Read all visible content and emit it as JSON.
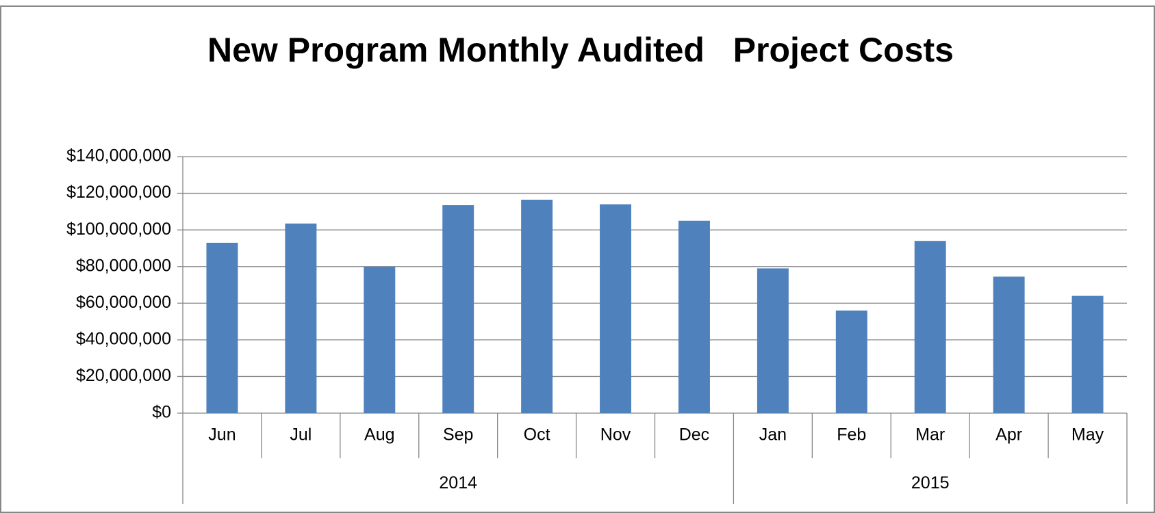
{
  "chart_data": {
    "type": "bar",
    "title": "New Program Monthly Audited   Project Costs",
    "color": "#4f81bd",
    "groups": [
      {
        "label": "2014",
        "categories": [
          "Jun",
          "Jul",
          "Aug",
          "Sep",
          "Oct",
          "Nov",
          "Dec"
        ],
        "values": [
          93000000,
          103500000,
          80000000,
          113500000,
          116500000,
          114000000,
          105000000
        ]
      },
      {
        "label": "2015",
        "categories": [
          "Jan",
          "Feb",
          "Mar",
          "Apr",
          "May"
        ],
        "values": [
          79000000,
          56000000,
          94000000,
          74500000,
          64000000
        ]
      }
    ],
    "ylim": [
      0,
      140000000
    ],
    "yticks": [
      {
        "value": 0,
        "label": "$0"
      },
      {
        "value": 20000000,
        "label": "$20,000,000"
      },
      {
        "value": 40000000,
        "label": "$40,000,000"
      },
      {
        "value": 60000000,
        "label": "$60,000,000"
      },
      {
        "value": 80000000,
        "label": "$80,000,000"
      },
      {
        "value": 100000000,
        "label": "$100,000,000"
      },
      {
        "value": 120000000,
        "label": "$120,000,000"
      },
      {
        "value": 140000000,
        "label": "$140,000,000"
      }
    ],
    "grid": true
  }
}
